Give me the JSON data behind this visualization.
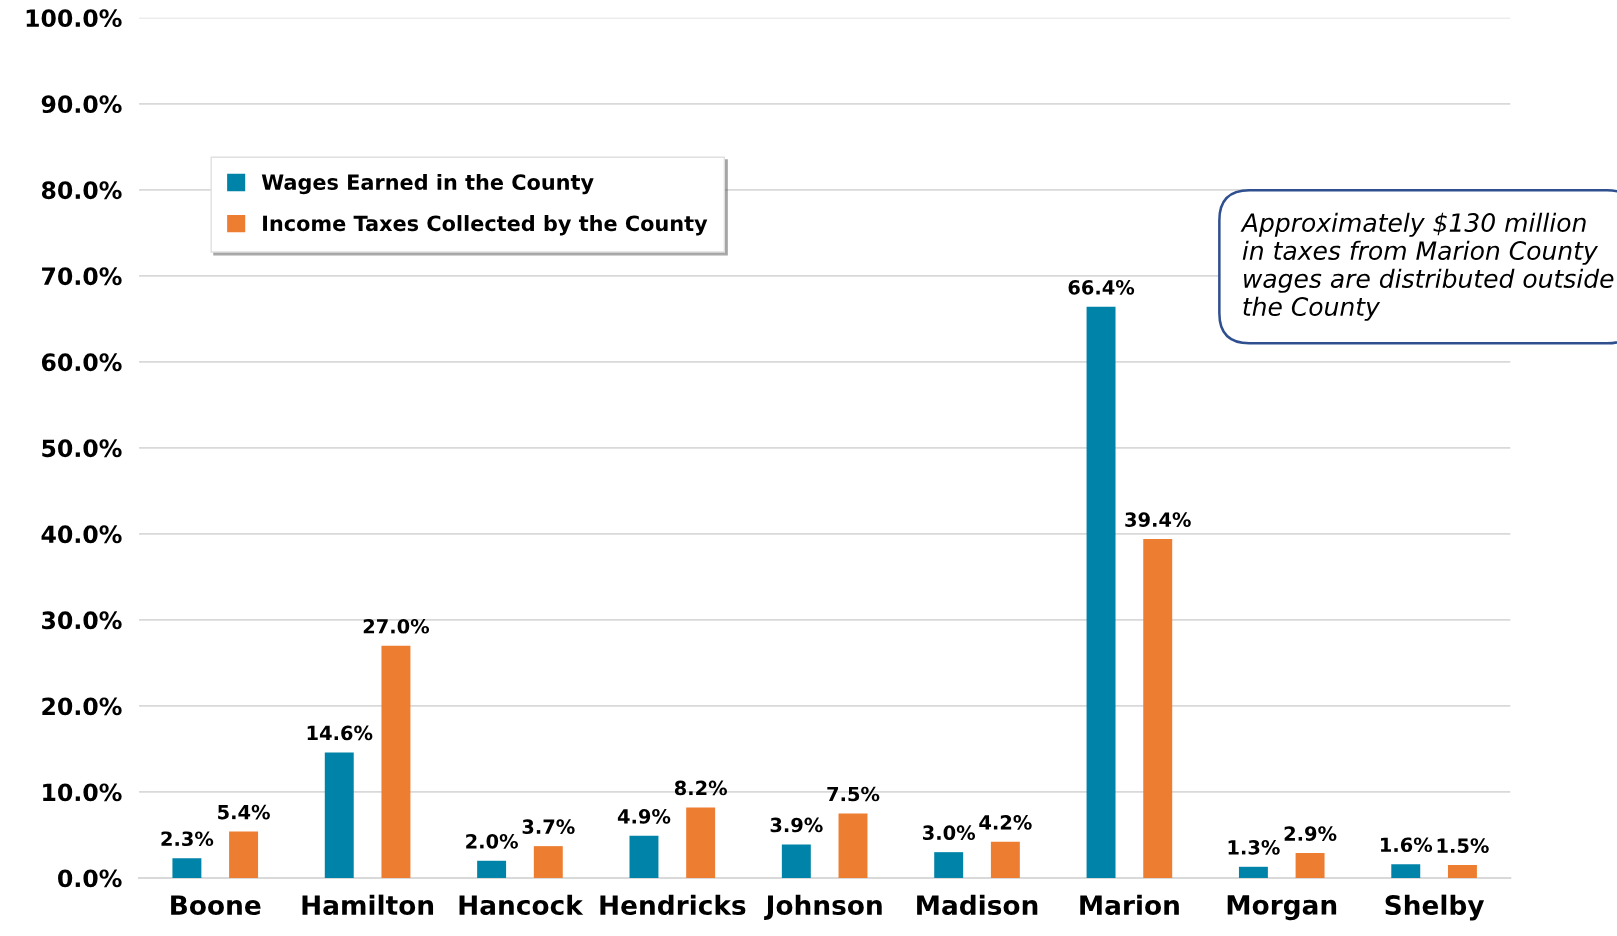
{
  "chart_data": {
    "type": "bar",
    "categories": [
      "Boone",
      "Hamilton",
      "Hancock",
      "Hendricks",
      "Johnson",
      "Madison",
      "Marion",
      "Morgan",
      "Shelby"
    ],
    "series": [
      {
        "name": "Wages Earned in the County",
        "color": "#0083a8",
        "values": [
          2.3,
          14.6,
          2.0,
          4.9,
          3.9,
          3.0,
          66.4,
          1.3,
          1.6
        ],
        "value_labels": [
          "2.3%",
          "14.6%",
          "2.0%",
          "4.9%",
          "3.9%",
          "3.0%",
          "66.4%",
          "1.3%",
          "1.6%"
        ]
      },
      {
        "name": "Income Taxes Collected by the County",
        "color": "#ed7d31",
        "values": [
          5.4,
          27.0,
          3.7,
          8.2,
          7.5,
          4.2,
          39.4,
          2.9,
          1.5
        ],
        "value_labels": [
          "5.4%",
          "27.0%",
          "3.7%",
          "8.2%",
          "7.5%",
          "4.2%",
          "39.4%",
          "2.9%",
          "1.5%"
        ]
      }
    ],
    "ylim": [
      0,
      100
    ],
    "yticks": [
      {
        "value": 0,
        "label": "0.0%"
      },
      {
        "value": 10,
        "label": "10.0%"
      },
      {
        "value": 20,
        "label": "20.0%"
      },
      {
        "value": 30,
        "label": "30.0%"
      },
      {
        "value": 40,
        "label": "40.0%"
      },
      {
        "value": 50,
        "label": "50.0%"
      },
      {
        "value": 60,
        "label": "60.0%"
      },
      {
        "value": 70,
        "label": "70.0%"
      },
      {
        "value": 80,
        "label": "80.0%"
      },
      {
        "value": 90,
        "label": "90.0%"
      },
      {
        "value": 100,
        "label": "100.0%"
      }
    ],
    "grid": "y",
    "legend": "top left",
    "annotations": [
      "Approximately $130 million in taxes from Marion County wages are distributed outside the County"
    ]
  }
}
